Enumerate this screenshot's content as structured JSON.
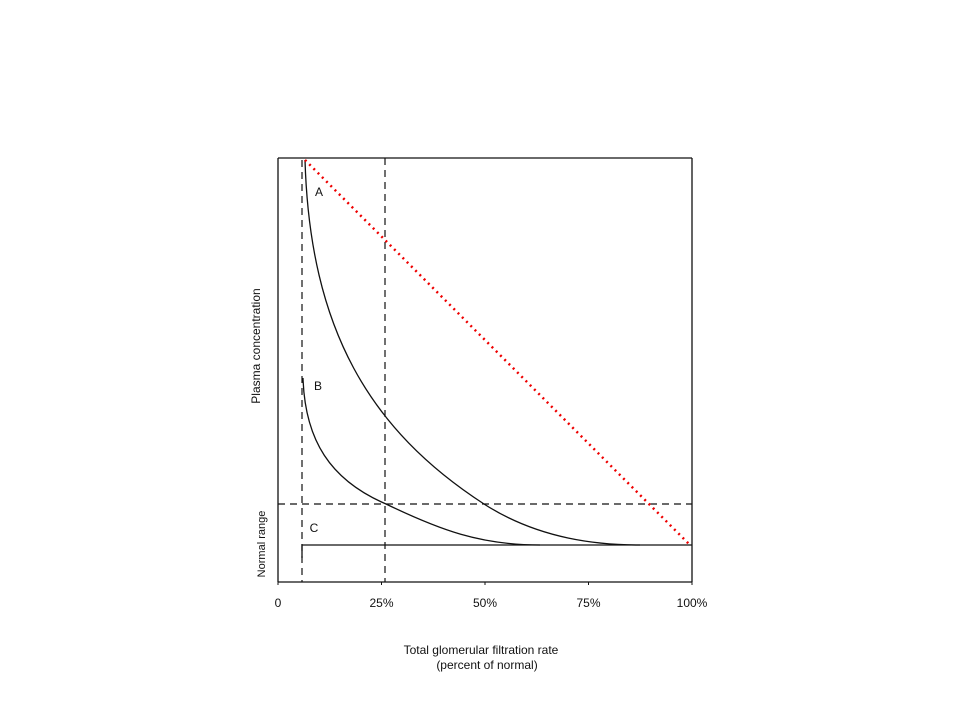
{
  "chart_data": {
    "type": "line",
    "ylabel": "Plasma concentration",
    "normal_label": "Normal range",
    "xlabel": [
      "Total glomerular filtration rate",
      "(percent of normal)"
    ],
    "xlim": [
      0,
      100
    ],
    "xticks": [
      0,
      {
        "value": 25,
        "label": "25%"
      },
      {
        "value": 50,
        "label": "50%"
      },
      {
        "value": 75,
        "label": "75%"
      },
      {
        "value": 100,
        "label": "100%"
      }
    ],
    "curve_labels": [
      "A",
      "B",
      "C"
    ]
  }
}
